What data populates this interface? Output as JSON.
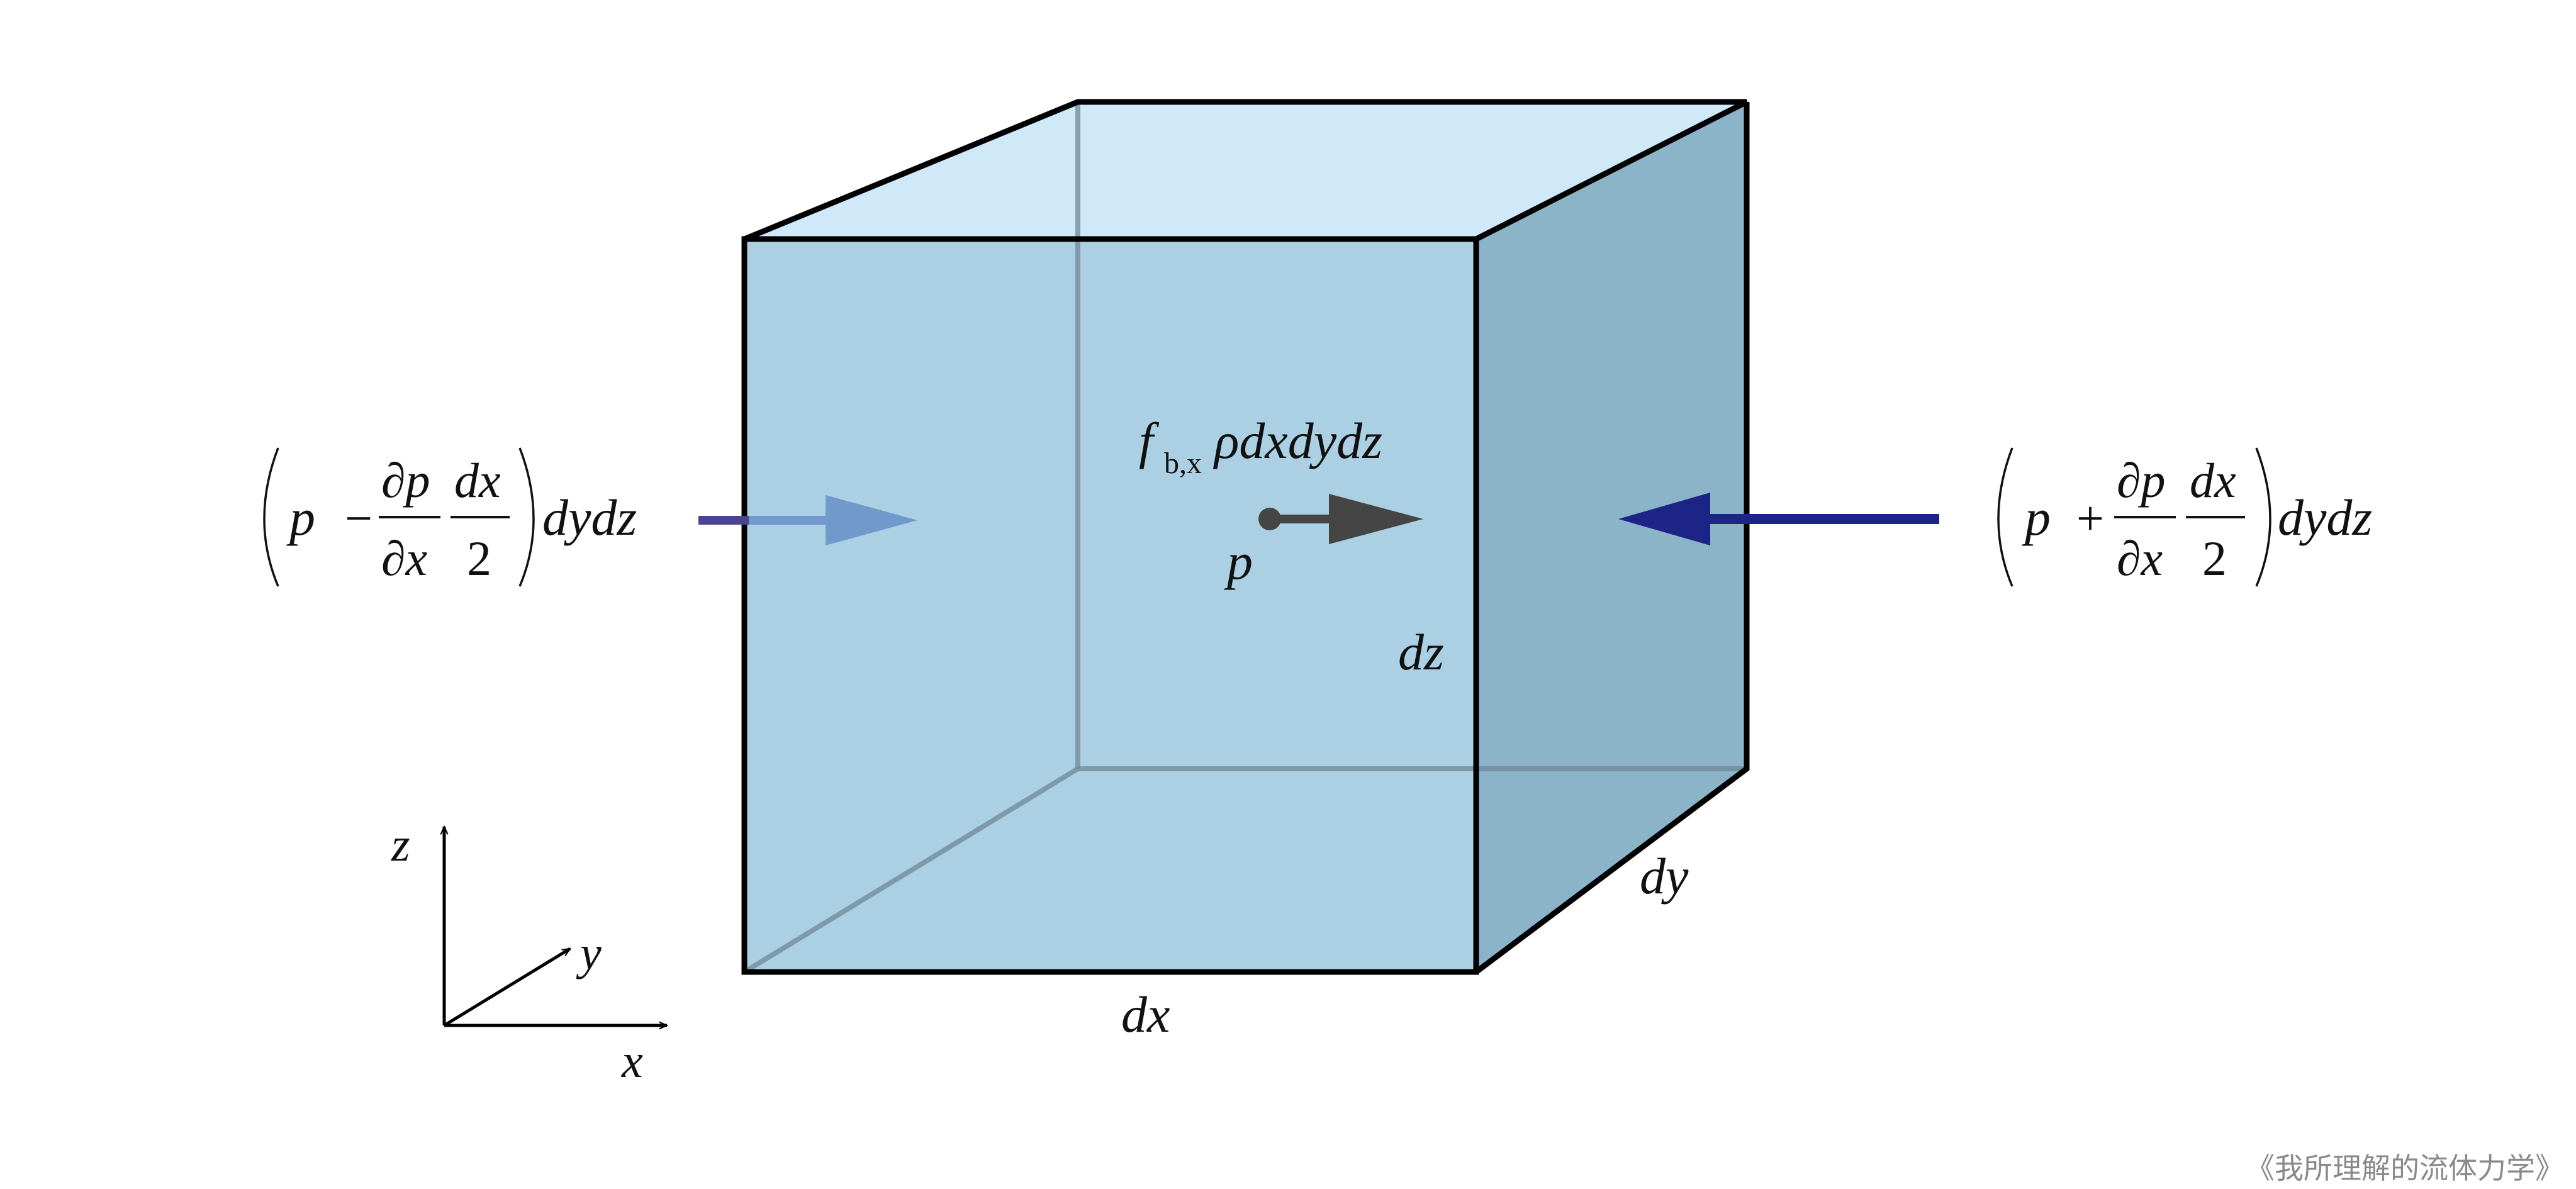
{
  "colors": {
    "front_face": "#acd0e3",
    "top_face": "#cfe9f8",
    "right_face": "#8bb4c9",
    "edge": "#000000",
    "hidden_edge": "#6f8794",
    "arrow_left": "#7199cc",
    "arrow_left_tail": "#4a4590",
    "arrow_right": "#1c2486",
    "arrow_body_force": "#454545"
  },
  "icons": {
    "left_pressure_arrow": "arrow-right-icon",
    "right_pressure_arrow": "arrow-left-icon",
    "body_force_arrow": "arrow-right-icon",
    "axis_arrows": "arrow-icon"
  },
  "labels": {
    "left_force": {
      "p": "p",
      "minus": "−",
      "dp_num": "∂p",
      "dx_den": "∂x",
      "frac_num": "dx",
      "frac_den": "2",
      "tail": "dydz"
    },
    "right_force": {
      "p": "p",
      "plus": "+",
      "dp_num": "∂p",
      "dx_den": "∂x",
      "frac_num": "dx",
      "frac_den": "2",
      "tail": "dydz"
    },
    "body_force": {
      "f": "f",
      "subscript": "b,x",
      "rest": "ρdxdydz"
    },
    "point_p": "p",
    "dim_dz": "dz",
    "dim_dy": "dy",
    "dim_dx": "dx",
    "axis_z": "z",
    "axis_y": "y",
    "axis_x": "x"
  },
  "caption": "《我所理解的流体力学》"
}
